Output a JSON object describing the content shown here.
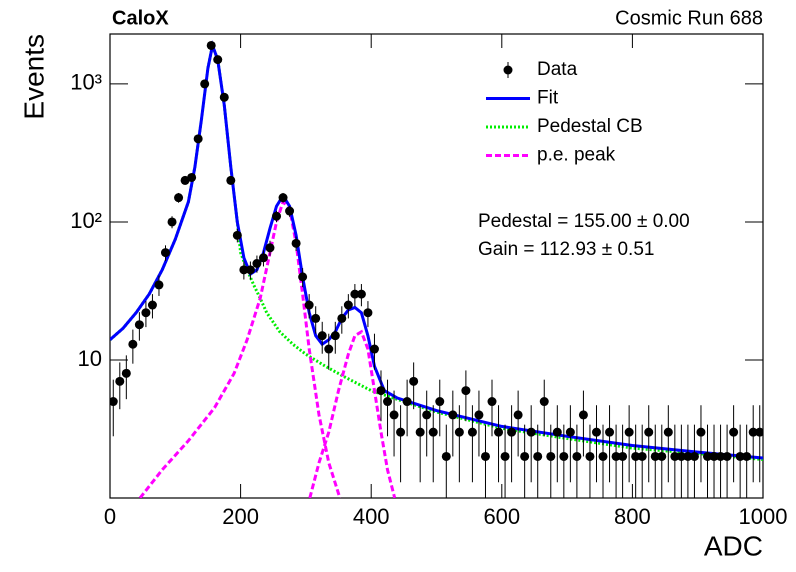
{
  "chart_data": {
    "type": "line",
    "title": "CaloX",
    "subtitle": "Cosmic Run 688",
    "x_label": "ADC",
    "y_label": "Events",
    "xlim": [
      0,
      1000
    ],
    "xticks": [
      0,
      200,
      400,
      600,
      800,
      1000
    ],
    "ylim": [
      1,
      2300
    ],
    "yticks": [
      10,
      {
        "value": 100,
        "label": "10²"
      },
      {
        "value": 1000,
        "label": "10³"
      }
    ],
    "log_y": true,
    "legend": "upper right",
    "annotations": [
      "Pedestal = 155.00 ± 0.00",
      "Gain = 112.93 ± 0.51"
    ],
    "series": [
      {
        "name": "Data",
        "type": "errorbar",
        "color": "#000000",
        "x": [
          5,
          15,
          25,
          35,
          45,
          55,
          65,
          75,
          85,
          95,
          105,
          115,
          125,
          135,
          145,
          155,
          165,
          175,
          185,
          195,
          205,
          215,
          225,
          235,
          245,
          255,
          265,
          275,
          285,
          295,
          305,
          315,
          325,
          335,
          345,
          355,
          365,
          375,
          385,
          395,
          405,
          415,
          425,
          435,
          445,
          455,
          465,
          475,
          485,
          495,
          505,
          515,
          525,
          535,
          545,
          555,
          565,
          575,
          585,
          595,
          605,
          615,
          625,
          635,
          645,
          655,
          665,
          675,
          685,
          695,
          705,
          715,
          725,
          735,
          745,
          755,
          765,
          775,
          785,
          795,
          805,
          815,
          825,
          835,
          845,
          855,
          865,
          875,
          885,
          895,
          905,
          915,
          925,
          935,
          945,
          955,
          965,
          975,
          985,
          995
        ],
        "values": [
          5,
          7,
          8,
          13,
          18,
          22,
          25,
          35,
          60,
          100,
          150,
          200,
          210,
          400,
          1000,
          1900,
          1500,
          800,
          200,
          80,
          45,
          45,
          50,
          55,
          65,
          110,
          150,
          120,
          70,
          40,
          25,
          20,
          15,
          12,
          15,
          20,
          25,
          30,
          30,
          22,
          12,
          6,
          5,
          4,
          3,
          5,
          7,
          3,
          4,
          3,
          5,
          2,
          4,
          3,
          6,
          3,
          4,
          2,
          5,
          3,
          2,
          3,
          4,
          2,
          3,
          2,
          5,
          2,
          3,
          2,
          3,
          2,
          4,
          2,
          3,
          2,
          3,
          2,
          2,
          3,
          2,
          2,
          3,
          2,
          2,
          3,
          2,
          2,
          2,
          2,
          3,
          2,
          2,
          2,
          2,
          3,
          2,
          2,
          3,
          3
        ],
        "errors": [
          2.2,
          2.6,
          2.8,
          3.6,
          4.2,
          4.7,
          5,
          5.9,
          7.7,
          10,
          12.2,
          14.1,
          14.5,
          20,
          31.6,
          43.6,
          38.7,
          28.3,
          14.1,
          8.9,
          6.7,
          6.7,
          7.1,
          7.4,
          8.1,
          10.5,
          12.2,
          11,
          8.4,
          6.3,
          5,
          4.5,
          3.9,
          3.5,
          3.9,
          4.5,
          5,
          5.5,
          5.5,
          4.7,
          3.5,
          2.4,
          2.2,
          2,
          1.7,
          2.2,
          2.6,
          1.7,
          2,
          1.7,
          2.2,
          1.4,
          2,
          1.7,
          2.4,
          1.7,
          2,
          1.4,
          2.2,
          1.7,
          1.4,
          1.7,
          2,
          1.4,
          1.7,
          1.4,
          2.2,
          1.4,
          1.7,
          1.4,
          1.7,
          1.4,
          2,
          1.4,
          1.7,
          1.4,
          1.7,
          1.4,
          1.4,
          1.7,
          1.4,
          1.4,
          1.7,
          1.4,
          1.4,
          1.7,
          1.4,
          1.4,
          1.4,
          1.4,
          1.7,
          1.4,
          1.4,
          1.4,
          1.4,
          1.7,
          1.4,
          1.4,
          1.7,
          1.7
        ]
      },
      {
        "name": "Fit",
        "type": "line",
        "color": "#0000ff",
        "dash": "solid",
        "x": [
          0,
          20,
          40,
          60,
          80,
          100,
          120,
          130,
          140,
          150,
          157,
          165,
          175,
          185,
          195,
          205,
          215,
          225,
          235,
          245,
          255,
          265,
          275,
          285,
          295,
          305,
          315,
          325,
          335,
          345,
          355,
          365,
          375,
          385,
          395,
          405,
          420,
          440,
          500,
          600,
          700,
          800,
          900,
          1000
        ],
        "values": [
          14,
          17,
          22,
          30,
          45,
          75,
          140,
          250,
          550,
          1300,
          1900,
          1500,
          700,
          250,
          100,
          55,
          42,
          45,
          60,
          90,
          130,
          155,
          130,
          80,
          40,
          22,
          15,
          13,
          14,
          16,
          20,
          23,
          24,
          22,
          15,
          9,
          6,
          5.3,
          4.3,
          3.3,
          2.8,
          2.4,
          2.15,
          1.95
        ]
      },
      {
        "name": "Pedestal CB",
        "type": "line",
        "color": "#00ee00",
        "dash": "dotted",
        "x": [
          0,
          20,
          40,
          60,
          80,
          100,
          120,
          130,
          140,
          150,
          157,
          165,
          175,
          185,
          195,
          200,
          210,
          220,
          230,
          240,
          260,
          280,
          300,
          330,
          360,
          400,
          450,
          500,
          600,
          700,
          800,
          900,
          1000
        ],
        "values": [
          14,
          17,
          22,
          30,
          45,
          75,
          140,
          250,
          550,
          1300,
          1900,
          1500,
          700,
          250,
          100,
          60,
          45,
          35,
          28,
          22,
          16,
          13,
          11,
          9,
          7.5,
          6,
          5,
          4.2,
          3.2,
          2.7,
          2.3,
          2.1,
          1.9
        ]
      },
      {
        "name": "p.e. peak",
        "type": "line",
        "color": "#ff00ff",
        "dash": "dashed",
        "x": [
          46,
          80,
          120,
          160,
          190,
          210,
          230,
          245,
          255,
          265,
          275,
          285,
          295,
          305,
          320,
          335,
          352,
          352,
          306,
          320,
          335,
          350,
          365,
          375,
          385,
          395,
          405,
          415,
          425,
          436
        ],
        "values": [
          1,
          1.6,
          2.6,
          4.5,
          8,
          14,
          28,
          60,
          100,
          140,
          125,
          70,
          30,
          12,
          4,
          1.8,
          1,
          null,
          1,
          1.8,
          3,
          6,
          11,
          15,
          16,
          12,
          6,
          3,
          1.6,
          1
        ]
      }
    ]
  }
}
